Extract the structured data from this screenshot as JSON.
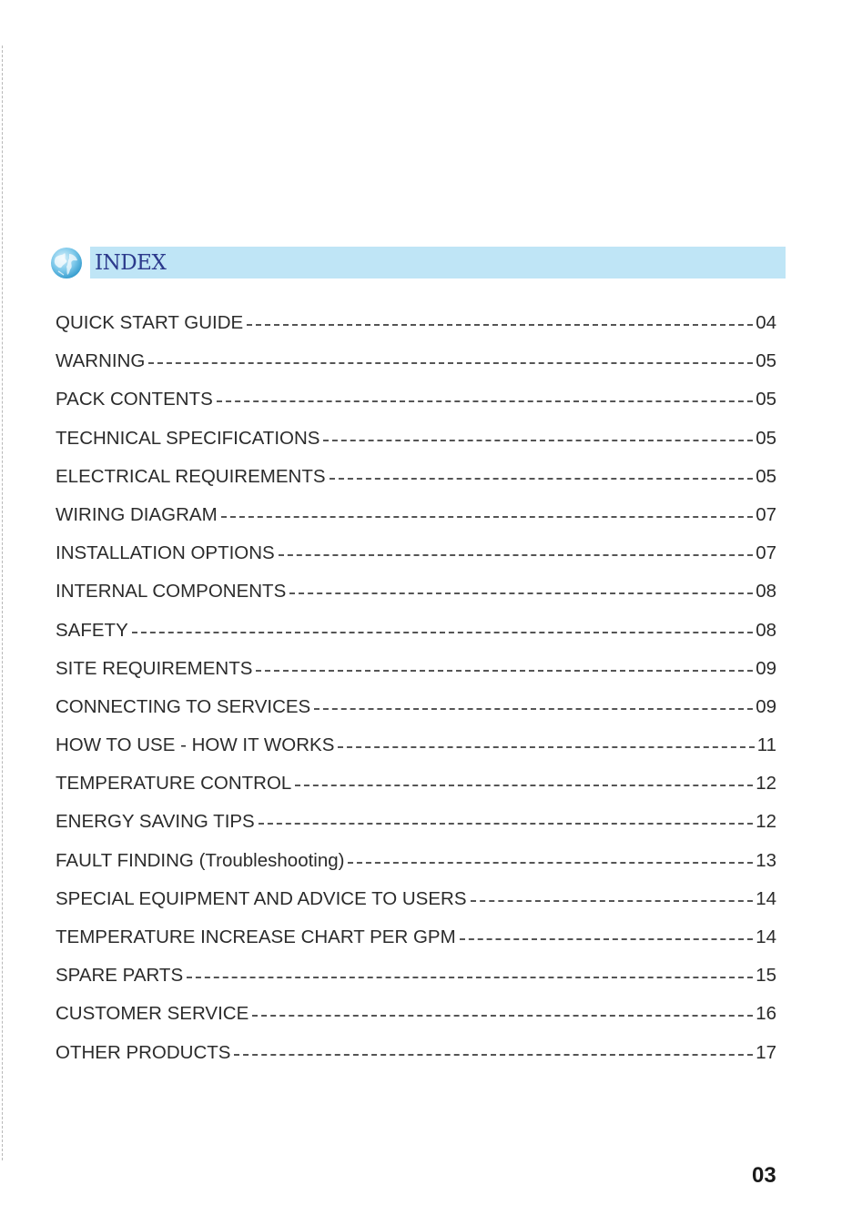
{
  "header": {
    "title": "INDEX",
    "icon": "globe-icon",
    "bar_color": "#bfe5f6",
    "title_color": "#2c3a8c"
  },
  "toc": [
    {
      "label": "QUICK START GUIDE",
      "page": "04"
    },
    {
      "label": "WARNING",
      "page": "05"
    },
    {
      "label": "PACK CONTENTS",
      "page": "05"
    },
    {
      "label": "TECHNICAL SPECIFICATIONS",
      "page": "05"
    },
    {
      "label": "ELECTRICAL REQUIREMENTS",
      "page": "05"
    },
    {
      "label": "WIRING DIAGRAM",
      "page": "07"
    },
    {
      "label": "INSTALLATION OPTIONS",
      "page": "07"
    },
    {
      "label": "INTERNAL COMPONENTS",
      "page": "08"
    },
    {
      "label": "SAFETY",
      "page": "08"
    },
    {
      "label": "SITE REQUIREMENTS",
      "page": "09"
    },
    {
      "label": "CONNECTING TO SERVICES",
      "page": "09"
    },
    {
      "label": "HOW TO USE - HOW IT WORKS",
      "page": "11"
    },
    {
      "label": "TEMPERATURE CONTROL",
      "page": "12"
    },
    {
      "label": "ENERGY SAVING TIPS",
      "page": "12"
    },
    {
      "label": "FAULT FINDING (Troubleshooting)",
      "page": "13"
    },
    {
      "label": "SPECIAL EQUIPMENT AND ADVICE TO USERS",
      "page": "14"
    },
    {
      "label": "TEMPERATURE INCREASE CHART PER GPM",
      "page": "14"
    },
    {
      "label": "SPARE PARTS",
      "page": "15"
    },
    {
      "label": "CUSTOMER SERVICE",
      "page": "16"
    },
    {
      "label": "OTHER PRODUCTS",
      "page": "17"
    }
  ],
  "footer": {
    "page_number": "03"
  }
}
